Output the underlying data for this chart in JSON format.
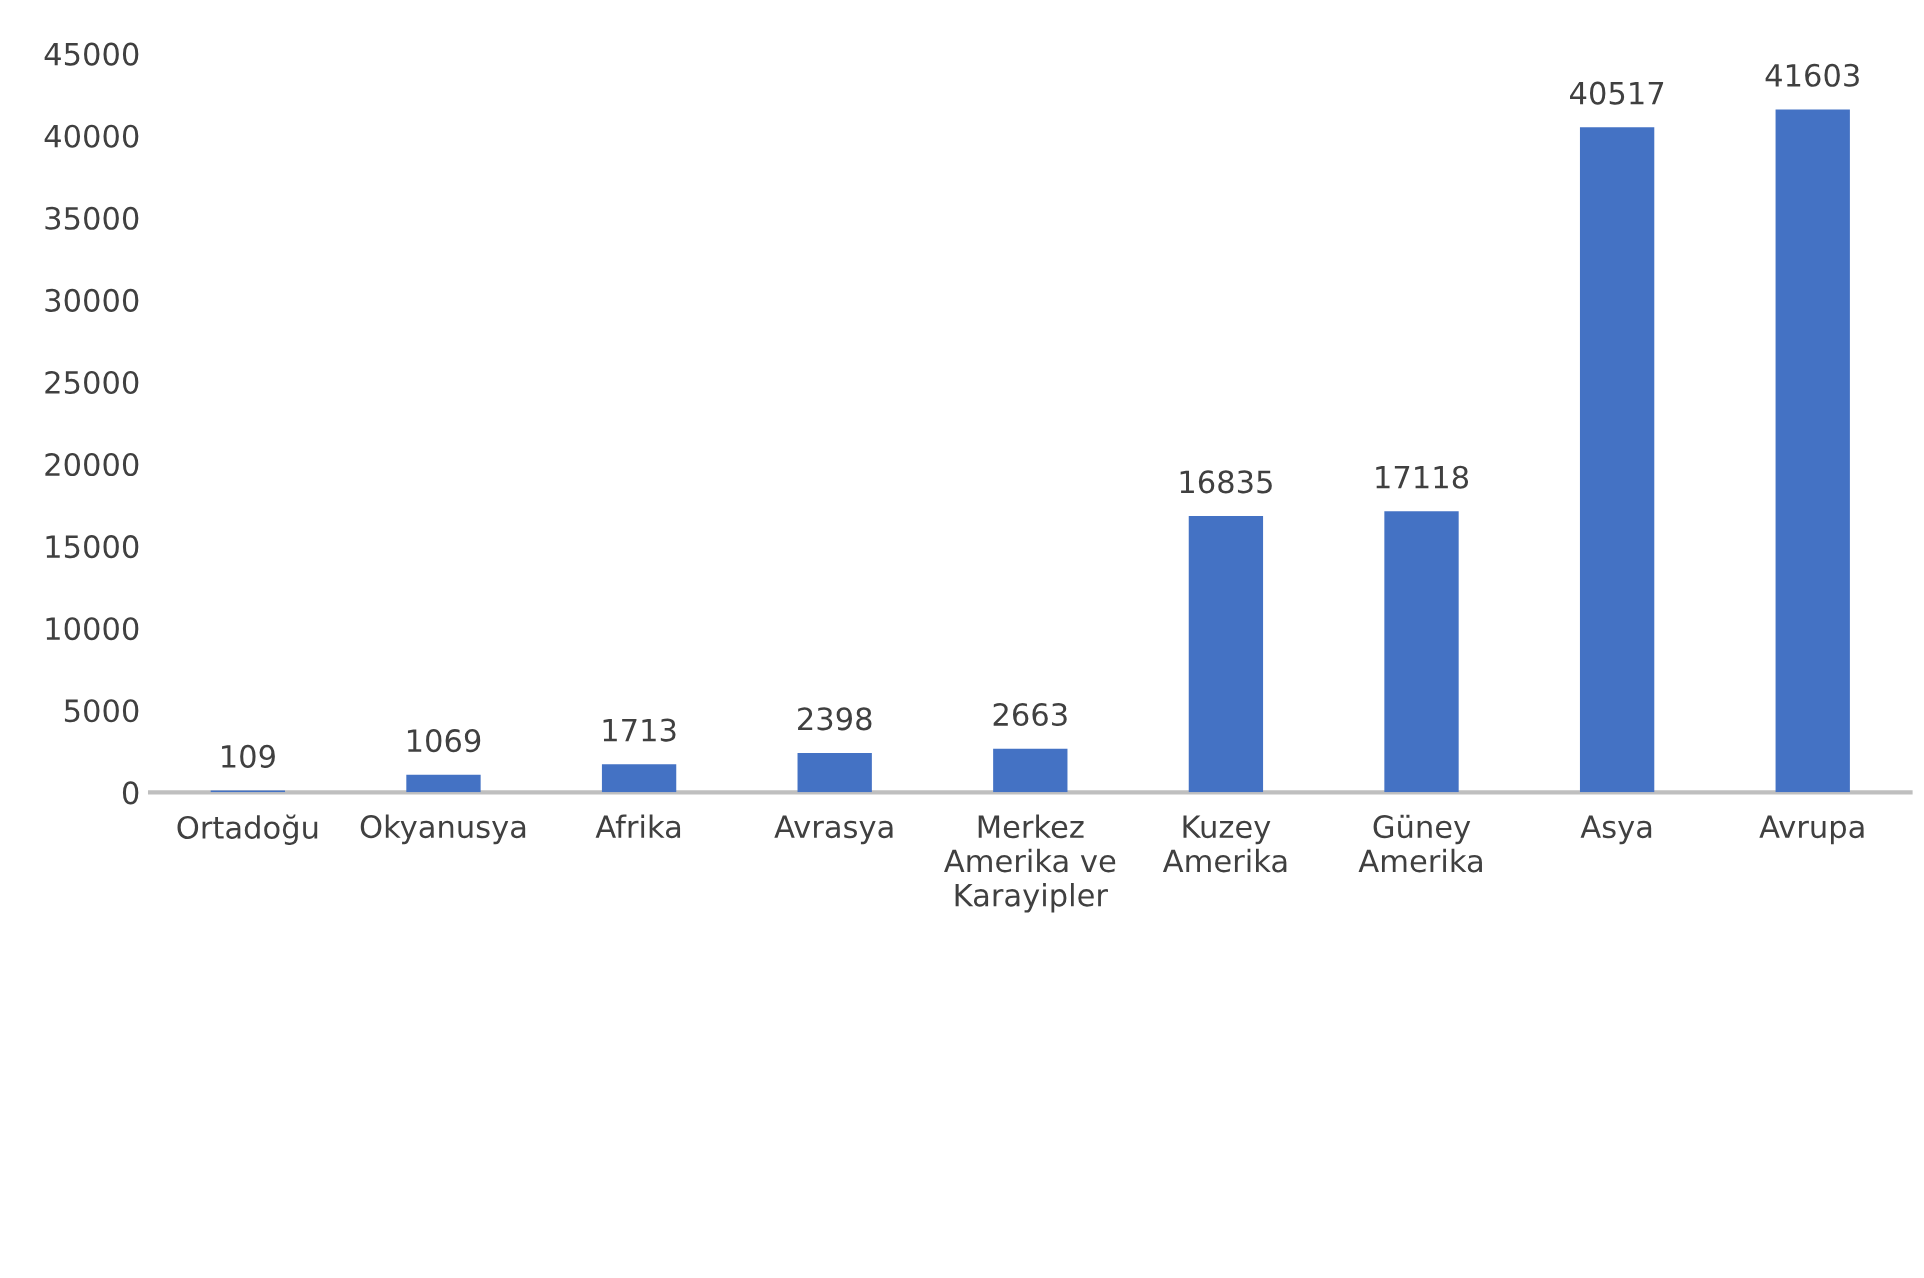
{
  "chart_data": {
    "type": "bar",
    "categories": [
      "Ortadoğu",
      "Okyanusya",
      "Afrika",
      "Avrasya",
      "Merkez\nAmerika ve\nKarayipler",
      "Kuzey\nAmerika",
      "Güney\nAmerika",
      "Asya",
      "Avrupa"
    ],
    "values": [
      109,
      1069,
      1713,
      2398,
      2663,
      16835,
      17118,
      40517,
      41603
    ],
    "color": "#4472c4",
    "ylim": [
      0,
      45000
    ],
    "yticks": [
      0,
      5000,
      10000,
      15000,
      20000,
      25000,
      30000,
      35000,
      40000,
      45000
    ],
    "grid": false,
    "data_labels": true
  }
}
